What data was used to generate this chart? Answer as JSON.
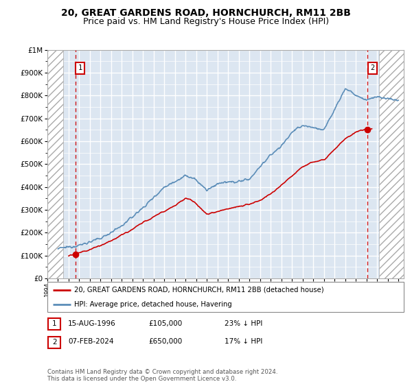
{
  "title": "20, GREAT GARDENS ROAD, HORNCHURCH, RM11 2BB",
  "subtitle": "Price paid vs. HM Land Registry's House Price Index (HPI)",
  "title_fontsize": 10,
  "subtitle_fontsize": 9,
  "ylim": [
    0,
    1000000
  ],
  "yticks": [
    0,
    100000,
    200000,
    300000,
    400000,
    500000,
    600000,
    700000,
    800000,
    900000,
    1000000
  ],
  "ytick_labels": [
    "£0",
    "£100K",
    "£200K",
    "£300K",
    "£400K",
    "£500K",
    "£600K",
    "£700K",
    "£800K",
    "£900K",
    "£1M"
  ],
  "xlim_start": 1994.0,
  "xlim_end": 2027.5,
  "hpi_color": "#5b8db8",
  "price_color": "#cc0000",
  "hatch_left_start": 1994.0,
  "hatch_left_end": 1995.5,
  "hatch_right_start": 2025.2,
  "hatch_right_end": 2027.5,
  "sale1_year": 1996.62,
  "sale1_price": 105000,
  "sale2_year": 2024.1,
  "sale2_price": 650000,
  "legend_line1": "20, GREAT GARDENS ROAD, HORNCHURCH, RM11 2BB (detached house)",
  "legend_line2": "HPI: Average price, detached house, Havering",
  "annotation1_date": "15-AUG-1996",
  "annotation1_price": "£105,000",
  "annotation1_hpi": "23% ↓ HPI",
  "annotation2_date": "07-FEB-2024",
  "annotation2_price": "£650,000",
  "annotation2_hpi": "17% ↓ HPI",
  "footer": "Contains HM Land Registry data © Crown copyright and database right 2024.\nThis data is licensed under the Open Government Licence v3.0.",
  "plot_bg_color": "#dce6f1",
  "grid_color": "#ffffff"
}
